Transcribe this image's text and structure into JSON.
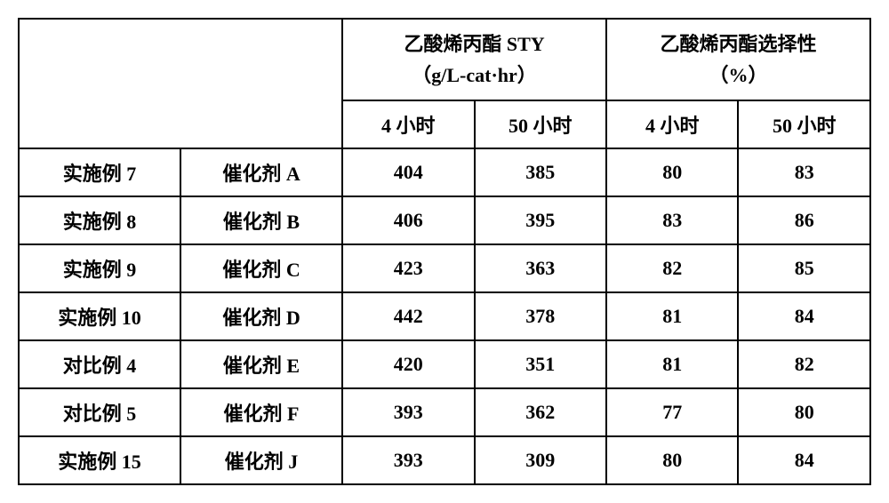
{
  "table": {
    "headers": {
      "group1_line1": "乙酸烯丙酯 STY",
      "group1_line2": "（g/L-cat·hr）",
      "group2_line1": "乙酸烯丙酯选择性",
      "group2_line2": "（%）",
      "sub_4h": "4 小时",
      "sub_50h": "50 小时"
    },
    "rows": [
      {
        "example": "实施例 7",
        "catalyst": "催化剂 A",
        "sty4": "404",
        "sty50": "385",
        "sel4": "80",
        "sel50": "83"
      },
      {
        "example": "实施例 8",
        "catalyst": "催化剂 B",
        "sty4": "406",
        "sty50": "395",
        "sel4": "83",
        "sel50": "86"
      },
      {
        "example": "实施例 9",
        "catalyst": "催化剂 C",
        "sty4": "423",
        "sty50": "363",
        "sel4": "82",
        "sel50": "85"
      },
      {
        "example": "实施例 10",
        "catalyst": "催化剂 D",
        "sty4": "442",
        "sty50": "378",
        "sel4": "81",
        "sel50": "84"
      },
      {
        "example": "对比例 4",
        "catalyst": "催化剂 E",
        "sty4": "420",
        "sty50": "351",
        "sel4": "81",
        "sel50": "82"
      },
      {
        "example": "对比例 5",
        "catalyst": "催化剂 F",
        "sty4": "393",
        "sty50": "362",
        "sel4": "77",
        "sel50": "80"
      },
      {
        "example": "实施例 15",
        "catalyst": "催化剂 J",
        "sty4": "393",
        "sty50": "309",
        "sel4": "80",
        "sel50": "84"
      }
    ],
    "style": {
      "border_color": "#000000",
      "background_color": "#ffffff",
      "font_size_pt": 16,
      "font_weight": "bold",
      "col_widths_pct": [
        19,
        19,
        15.5,
        15.5,
        15.5,
        15.5
      ]
    }
  }
}
